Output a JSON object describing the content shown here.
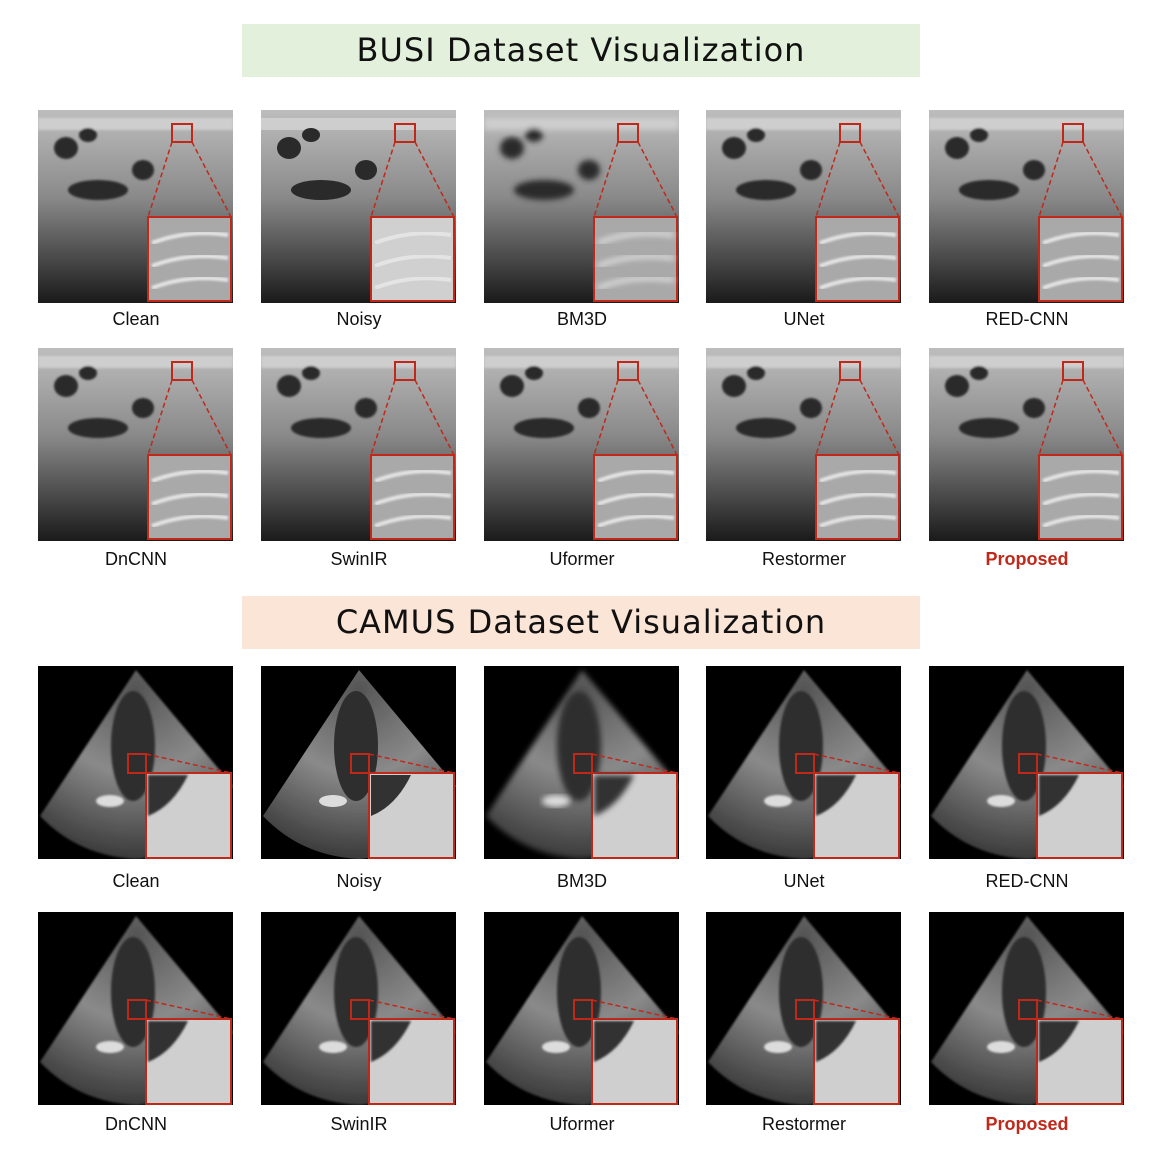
{
  "sections": [
    {
      "title": "BUSI Dataset Visualization",
      "panels": [
        "Clean",
        "Noisy",
        "BM3D",
        "UNet",
        "RED-CNN",
        "DnCNN",
        "SwinIR",
        "Uformer",
        "Restormer",
        "Proposed"
      ]
    },
    {
      "title": "CAMUS Dataset Visualization",
      "panels": [
        "Clean",
        "Noisy",
        "BM3D",
        "UNet",
        "RED-CNN",
        "DnCNN",
        "SwinIR",
        "Uformer",
        "Restormer",
        "Proposed"
      ]
    }
  ]
}
